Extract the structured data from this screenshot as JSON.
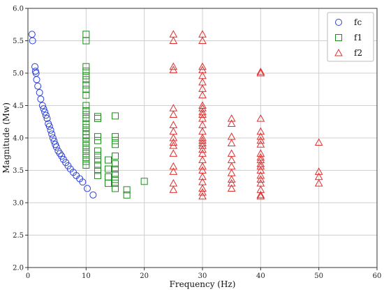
{
  "chart_data": {
    "type": "scatter",
    "xlabel": "Frequency (Hz)",
    "ylabel": "Magnitude (Mw)",
    "xlim": [
      0,
      60
    ],
    "ylim": [
      2.0,
      6.0
    ],
    "x_ticks": [
      0,
      10,
      20,
      30,
      40,
      50,
      60
    ],
    "y_ticks": [
      2.0,
      2.5,
      3.0,
      3.5,
      4.0,
      4.5,
      5.0,
      5.5,
      6.0
    ],
    "x_tick_labels": [
      "0",
      "10",
      "20",
      "30",
      "40",
      "50",
      "60"
    ],
    "y_tick_labels": [
      "2.0",
      "2.5",
      "3.0",
      "3.5",
      "4.0",
      "4.5",
      "5.0",
      "5.5",
      "6.0"
    ],
    "grid": true,
    "legend_position": "top-right",
    "series": [
      {
        "name": "fc",
        "marker": "circle",
        "color": "#2a3fd6",
        "points": [
          [
            0.7,
            5.6
          ],
          [
            0.8,
            5.5
          ],
          [
            1.2,
            5.1
          ],
          [
            1.3,
            5.03
          ],
          [
            1.4,
            5.0
          ],
          [
            1.5,
            4.9
          ],
          [
            1.7,
            4.8
          ],
          [
            2.0,
            4.7
          ],
          [
            2.2,
            4.6
          ],
          [
            2.5,
            4.5
          ],
          [
            2.7,
            4.45
          ],
          [
            2.9,
            4.4
          ],
          [
            3.1,
            4.35
          ],
          [
            3.3,
            4.3
          ],
          [
            3.5,
            4.22
          ],
          [
            3.7,
            4.18
          ],
          [
            3.9,
            4.12
          ],
          [
            4.1,
            4.06
          ],
          [
            4.3,
            4.0
          ],
          [
            4.5,
            3.95
          ],
          [
            4.7,
            3.9
          ],
          [
            4.9,
            3.86
          ],
          [
            5.2,
            3.8
          ],
          [
            5.5,
            3.76
          ],
          [
            5.8,
            3.72
          ],
          [
            6.1,
            3.67
          ],
          [
            6.5,
            3.62
          ],
          [
            6.9,
            3.57
          ],
          [
            7.3,
            3.52
          ],
          [
            7.8,
            3.47
          ],
          [
            8.3,
            3.42
          ],
          [
            8.9,
            3.37
          ],
          [
            9.4,
            3.32
          ],
          [
            10.2,
            3.22
          ],
          [
            11.2,
            3.12
          ]
        ]
      },
      {
        "name": "f1",
        "marker": "square",
        "color": "#1e8a1e",
        "points": [
          [
            10,
            5.6
          ],
          [
            10,
            5.5
          ],
          [
            10,
            5.1
          ],
          [
            10,
            5.03
          ],
          [
            10,
            4.96
          ],
          [
            10,
            4.9
          ],
          [
            10,
            4.82
          ],
          [
            10,
            4.75
          ],
          [
            10,
            4.66
          ],
          [
            10,
            4.5
          ],
          [
            10,
            4.42
          ],
          [
            10,
            4.36
          ],
          [
            10,
            4.3
          ],
          [
            10,
            4.22
          ],
          [
            10,
            4.16
          ],
          [
            10,
            4.1
          ],
          [
            10,
            4.05
          ],
          [
            10,
            4.0
          ],
          [
            10,
            3.94
          ],
          [
            10,
            3.88
          ],
          [
            10,
            3.82
          ],
          [
            10,
            3.76
          ],
          [
            10,
            3.7
          ],
          [
            10,
            3.64
          ],
          [
            10,
            3.58
          ],
          [
            12,
            4.33
          ],
          [
            12,
            4.3
          ],
          [
            12,
            4.02
          ],
          [
            12,
            3.96
          ],
          [
            12,
            3.8
          ],
          [
            12,
            3.73
          ],
          [
            12,
            3.66
          ],
          [
            12,
            3.58
          ],
          [
            12,
            3.5
          ],
          [
            12,
            3.42
          ],
          [
            13.8,
            3.66
          ],
          [
            13.8,
            3.52
          ],
          [
            13.8,
            3.4
          ],
          [
            13.8,
            3.3
          ],
          [
            15,
            4.34
          ],
          [
            15,
            4.02
          ],
          [
            15,
            3.96
          ],
          [
            15,
            3.9
          ],
          [
            15,
            3.72
          ],
          [
            15,
            3.6
          ],
          [
            15,
            3.52
          ],
          [
            15,
            3.44
          ],
          [
            15,
            3.36
          ],
          [
            15,
            3.3
          ],
          [
            15,
            3.22
          ],
          [
            17,
            3.2
          ],
          [
            17,
            3.12
          ],
          [
            20,
            3.33
          ]
        ]
      },
      {
        "name": "f2",
        "marker": "triangle",
        "color": "#e03030",
        "points": [
          [
            25,
            5.6
          ],
          [
            25,
            5.5
          ],
          [
            25,
            5.1
          ],
          [
            25,
            5.05
          ],
          [
            25,
            4.46
          ],
          [
            25,
            4.36
          ],
          [
            25,
            4.2
          ],
          [
            25,
            4.1
          ],
          [
            25,
            4.0
          ],
          [
            25,
            3.93
          ],
          [
            25,
            3.88
          ],
          [
            25,
            3.76
          ],
          [
            25,
            3.56
          ],
          [
            25,
            3.48
          ],
          [
            25,
            3.3
          ],
          [
            25,
            3.2
          ],
          [
            30,
            5.6
          ],
          [
            30,
            5.5
          ],
          [
            30,
            5.1
          ],
          [
            30,
            5.05
          ],
          [
            30,
            4.96
          ],
          [
            30,
            4.86
          ],
          [
            30,
            4.76
          ],
          [
            30,
            4.66
          ],
          [
            30,
            4.5
          ],
          [
            30,
            4.46
          ],
          [
            30,
            4.4
          ],
          [
            30,
            4.36
          ],
          [
            30,
            4.3
          ],
          [
            30,
            4.2
          ],
          [
            30,
            4.1
          ],
          [
            30,
            4.0
          ],
          [
            30,
            3.96
          ],
          [
            30,
            3.92
          ],
          [
            30,
            3.88
          ],
          [
            30,
            3.82
          ],
          [
            30,
            3.76
          ],
          [
            30,
            3.66
          ],
          [
            30,
            3.56
          ],
          [
            30,
            3.5
          ],
          [
            30,
            3.4
          ],
          [
            30,
            3.32
          ],
          [
            30,
            3.22
          ],
          [
            30,
            3.16
          ],
          [
            30,
            3.1
          ],
          [
            35,
            4.3
          ],
          [
            35,
            4.22
          ],
          [
            35,
            4.02
          ],
          [
            35,
            3.92
          ],
          [
            35,
            3.76
          ],
          [
            35,
            3.66
          ],
          [
            35,
            3.56
          ],
          [
            35,
            3.46
          ],
          [
            35,
            3.36
          ],
          [
            35,
            3.3
          ],
          [
            35,
            3.22
          ],
          [
            40,
            5.02
          ],
          [
            40,
            5.0
          ],
          [
            40,
            4.3
          ],
          [
            40,
            4.1
          ],
          [
            40,
            4.02
          ],
          [
            40,
            3.96
          ],
          [
            40,
            3.9
          ],
          [
            40,
            3.76
          ],
          [
            40,
            3.7
          ],
          [
            40,
            3.66
          ],
          [
            40,
            3.6
          ],
          [
            40,
            3.56
          ],
          [
            40,
            3.5
          ],
          [
            40,
            3.42
          ],
          [
            40,
            3.36
          ],
          [
            40,
            3.3
          ],
          [
            40,
            3.2
          ],
          [
            40,
            3.12
          ],
          [
            40,
            3.1
          ],
          [
            50,
            3.93
          ],
          [
            50,
            3.48
          ],
          [
            50,
            3.4
          ],
          [
            50,
            3.3
          ]
        ]
      }
    ]
  }
}
